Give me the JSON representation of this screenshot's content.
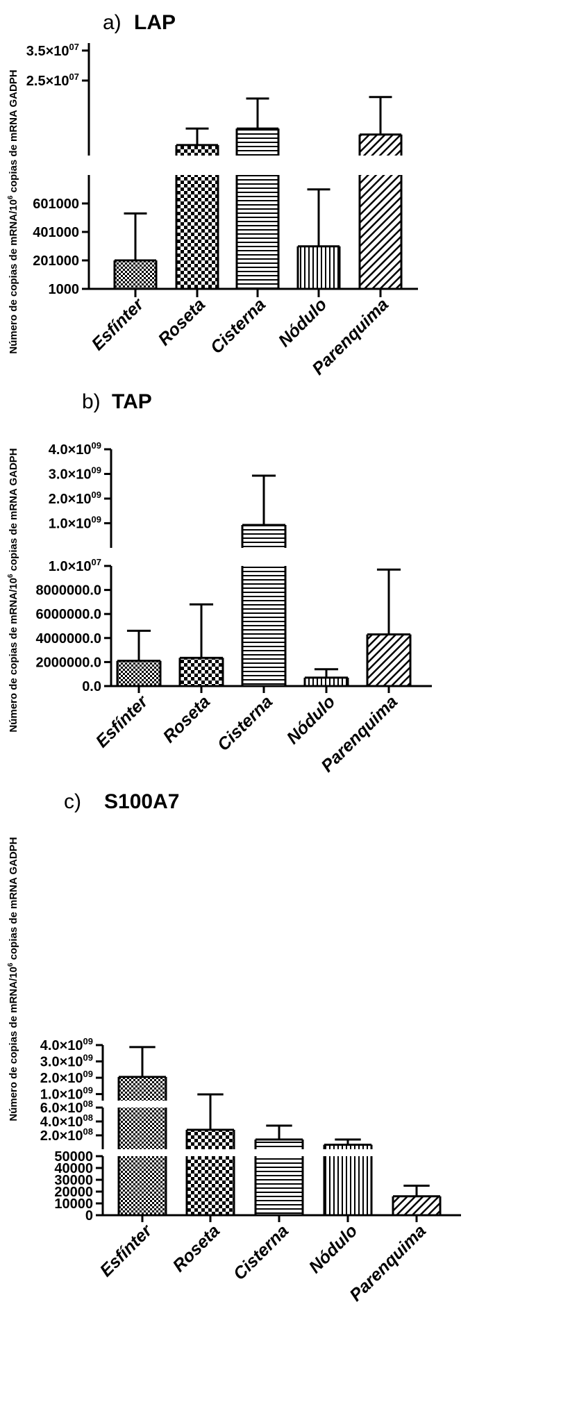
{
  "figure": {
    "ylabel_main": "Número de copias de mRNA/10",
    "ylabel_sup": "6",
    "ylabel_tail": " copias de mRNA GADPH",
    "colors": {
      "ink": "#000000",
      "bar_fill": "#ffffff",
      "background": "#ffffff"
    }
  },
  "chart_data": [
    {
      "panel": "a",
      "type": "bar",
      "title_letter": "a)",
      "title": "LAP",
      "categories": [
        "Esfínter",
        "Roseta",
        "Cisterna",
        "Nódulo",
        "Parenquima"
      ],
      "patterns": [
        "fine-check",
        "coarse-check",
        "horizontal-lines",
        "vertical-lines",
        "diagonal-lines"
      ],
      "axis_broken": true,
      "segments": [
        {
          "ylim": [
            1000,
            801000
          ],
          "ticks": [
            {
              "value": 1000,
              "label": "1000"
            },
            {
              "value": 201000,
              "label": "201000"
            },
            {
              "value": 401000,
              "label": "401000"
            },
            {
              "value": 601000,
              "label": "601000"
            }
          ]
        },
        {
          "ylim": [
            0,
            37500000
          ],
          "ticks": [
            {
              "value": 25000000,
              "label": "2.5×10",
              "exp": "07"
            },
            {
              "value": 35000000,
              "label": "3.5×10",
              "exp": "07"
            }
          ]
        }
      ],
      "series": [
        {
          "name": "LAP",
          "values": [
            201000,
            3500000,
            9000000,
            300000,
            7000000
          ],
          "errors": [
            330000,
            5500000,
            10000000,
            400000,
            12500000
          ]
        }
      ]
    },
    {
      "panel": "b",
      "type": "bar",
      "title_letter": "b)",
      "title": "TAP",
      "categories": [
        "Esfínter",
        "Roseta",
        "Cisterna",
        "Nódulo",
        "Parenquima"
      ],
      "patterns": [
        "fine-check",
        "coarse-check",
        "horizontal-lines",
        "vertical-lines",
        "diagonal-lines"
      ],
      "axis_broken": true,
      "segments": [
        {
          "ylim": [
            0,
            10000000
          ],
          "ticks": [
            {
              "value": 0,
              "label": "0.0"
            },
            {
              "value": 2000000,
              "label": "2000000.0"
            },
            {
              "value": 4000000,
              "label": "4000000.0"
            },
            {
              "value": 6000000,
              "label": "6000000.0"
            },
            {
              "value": 8000000,
              "label": "8000000.0"
            },
            {
              "value": 10000000,
              "label": "1.0×10",
              "exp": "07"
            }
          ]
        },
        {
          "ylim": [
            0,
            4000000000
          ],
          "ticks": [
            {
              "value": 1000000000,
              "label": "1.0×10",
              "exp": "09"
            },
            {
              "value": 2000000000,
              "label": "2.0×10",
              "exp": "09"
            },
            {
              "value": 3000000000,
              "label": "3.0×10",
              "exp": "09"
            },
            {
              "value": 4000000000,
              "label": "4.0×10",
              "exp": "09"
            }
          ]
        }
      ],
      "series": [
        {
          "name": "TAP",
          "values": [
            2100000,
            2350000,
            930000000,
            700000,
            4300000
          ],
          "errors": [
            2500000,
            4450000,
            2000000000,
            700000,
            5400000
          ]
        }
      ]
    },
    {
      "panel": "c",
      "type": "bar",
      "title_letter": "c)",
      "title": "S100A7",
      "categories": [
        "Esfínter",
        "Roseta",
        "Cisterna",
        "Nódulo",
        "Parenquima"
      ],
      "patterns": [
        "fine-check",
        "coarse-check",
        "horizontal-lines",
        "vertical-lines",
        "diagonal-lines"
      ],
      "axis_broken": true,
      "segments": [
        {
          "ylim": [
            0,
            50000
          ],
          "ticks": [
            {
              "value": 0,
              "label": "0"
            },
            {
              "value": 10000,
              "label": "10000"
            },
            {
              "value": 20000,
              "label": "20000"
            },
            {
              "value": 30000,
              "label": "30000"
            },
            {
              "value": 40000,
              "label": "40000"
            },
            {
              "value": 50000,
              "label": "50000"
            }
          ]
        },
        {
          "ylim": [
            0,
            600000000
          ],
          "ticks": [
            {
              "value": 200000000,
              "label": "2.0×10",
              "exp": "08"
            },
            {
              "value": 400000000,
              "label": "4.0×10",
              "exp": "08"
            },
            {
              "value": 600000000,
              "label": "6.0×10",
              "exp": "08"
            }
          ]
        },
        {
          "ylim": [
            600000000,
            4000000000
          ],
          "ticks": [
            {
              "value": 1000000000,
              "label": "1.0×10",
              "exp": "09"
            },
            {
              "value": 2000000000,
              "label": "2.0×10",
              "exp": "09"
            },
            {
              "value": 3000000000,
              "label": "3.0×10",
              "exp": "09"
            },
            {
              "value": 4000000000,
              "label": "4.0×10",
              "exp": "09"
            }
          ]
        }
      ],
      "series": [
        {
          "name": "S100A7",
          "values": [
            2050000000,
            280000000,
            140000000,
            65000000,
            16000
          ],
          "errors": [
            1830000000,
            700000000,
            200000000,
            75000000,
            9000
          ]
        }
      ]
    }
  ]
}
